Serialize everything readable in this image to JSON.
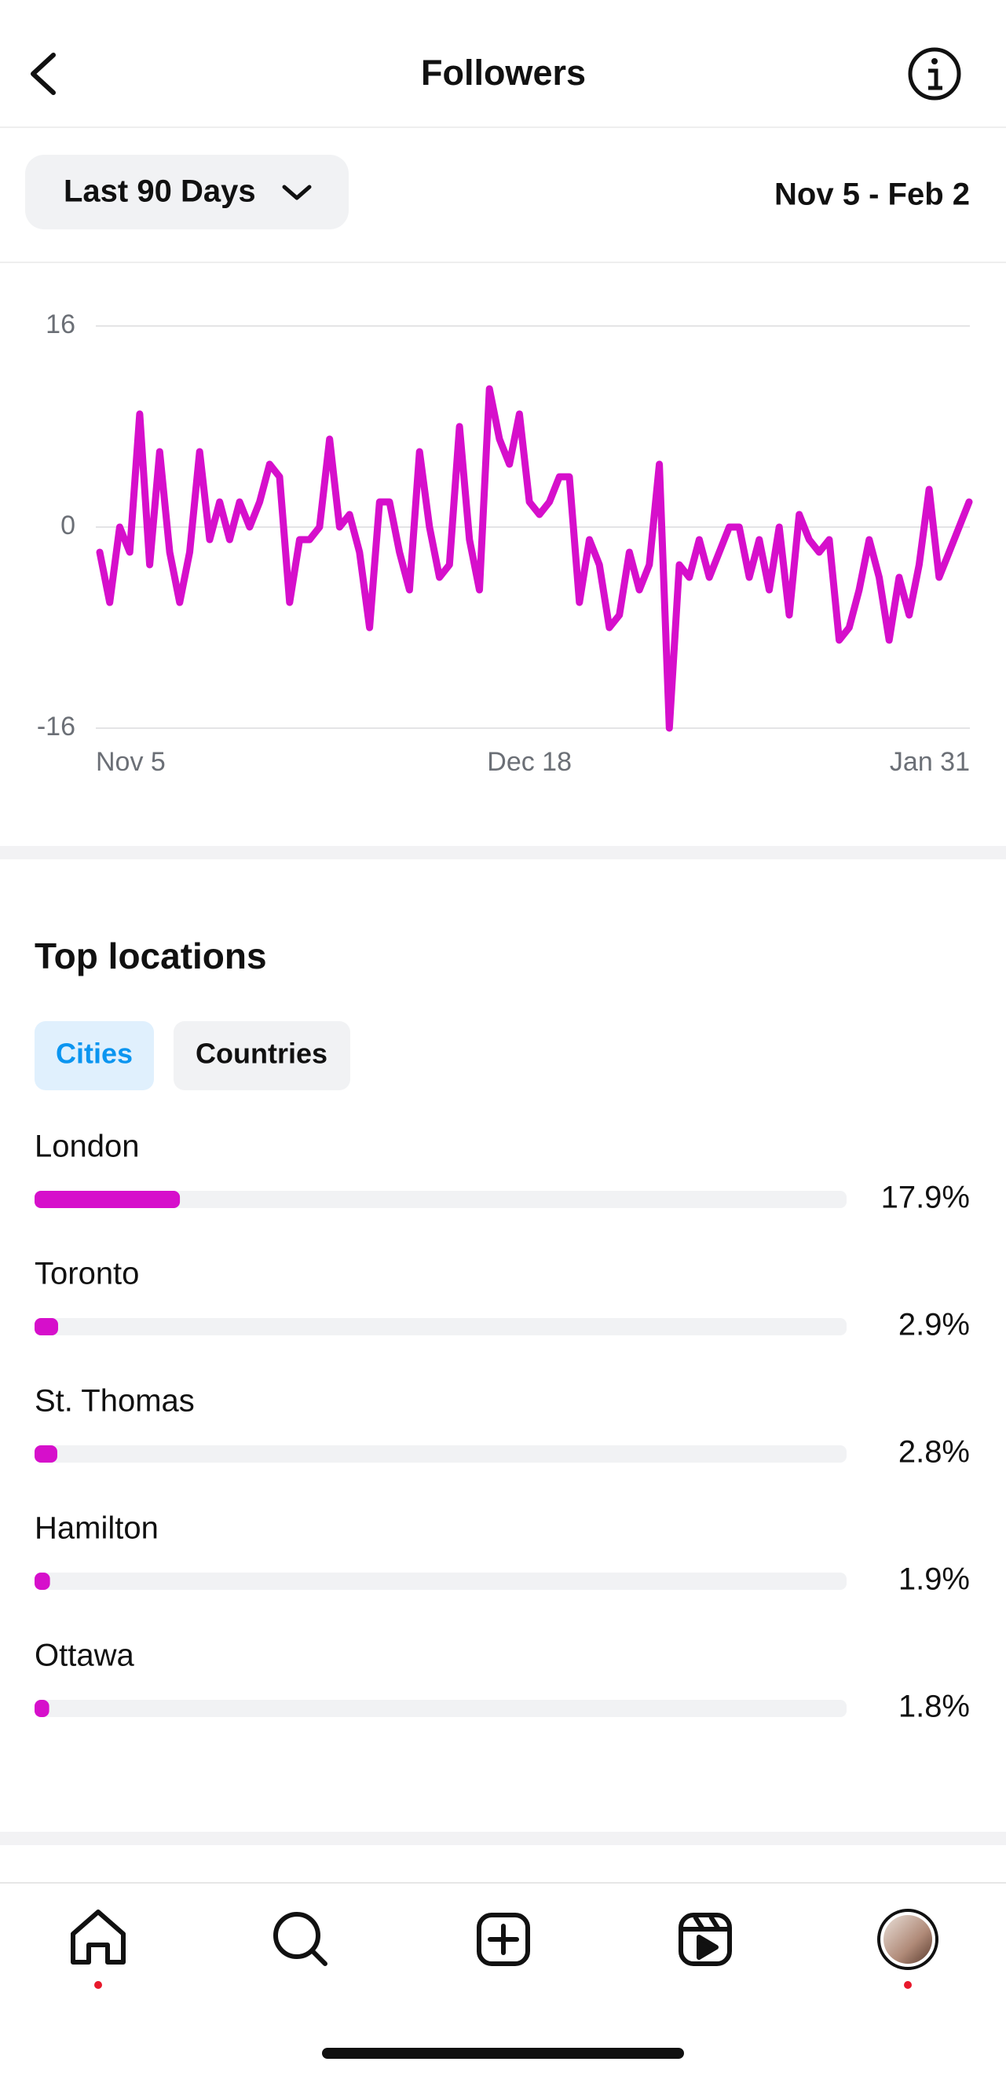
{
  "header": {
    "title": "Followers"
  },
  "controls": {
    "range": "Last 90 Days",
    "dates": "Nov 5 - Feb 2"
  },
  "location_tabs": [
    "Cities",
    "Countries"
  ],
  "chart_data": [
    {
      "type": "line",
      "categories": [
        "Nov 5",
        null,
        null,
        null,
        null,
        null,
        null,
        null,
        null,
        null,
        null,
        null,
        null,
        null,
        null,
        null,
        null,
        null,
        null,
        null,
        null,
        null,
        null,
        null,
        null,
        null,
        null,
        null,
        null,
        null,
        null,
        null,
        null,
        null,
        null,
        null,
        null,
        null,
        null,
        null,
        null,
        null,
        null,
        "Dec 18",
        null,
        null,
        null,
        null,
        null,
        null,
        null,
        null,
        null,
        null,
        null,
        null,
        null,
        null,
        null,
        null,
        null,
        null,
        null,
        null,
        null,
        null,
        null,
        null,
        null,
        null,
        null,
        null,
        null,
        null,
        null,
        null,
        null,
        null,
        null,
        null,
        null,
        null,
        null,
        null,
        null,
        null,
        null,
        "Jan 31"
      ],
      "values": [
        -2,
        -6,
        0,
        -2,
        9,
        -3,
        6,
        -2,
        -6,
        -2,
        6,
        -1,
        2,
        -1,
        2,
        0,
        2,
        5,
        4,
        -6,
        -1,
        -1,
        0,
        7,
        0,
        1,
        -2,
        -8,
        2,
        2,
        -2,
        -5,
        6,
        0,
        -4,
        -3,
        8,
        -1,
        -5,
        11,
        7,
        5,
        9,
        2,
        1,
        2,
        4,
        4,
        -6,
        -1,
        -3,
        -8,
        -7,
        -2,
        -5,
        -3,
        5,
        -16,
        -3,
        -4,
        -1,
        -4,
        -2,
        0,
        0,
        -4,
        -1,
        -5,
        0,
        -7,
        1,
        -1,
        -2,
        -1,
        -9,
        -8,
        -5,
        -1,
        -4,
        -9,
        -4,
        -7,
        -3,
        3,
        -4,
        -2,
        0,
        2
      ],
      "color": "#d60fcb",
      "ylim": [
        -16,
        16
      ],
      "yticks": [
        -16,
        0,
        16
      ],
      "grid": true
    },
    {
      "type": "hbar",
      "title": "Top locations",
      "categories": [
        "London",
        "Toronto",
        "St. Thomas",
        "Hamilton",
        "Ottawa"
      ],
      "values": [
        17.9,
        2.9,
        2.8,
        1.9,
        1.8
      ],
      "value_labels": [
        "17.9%",
        "2.9%",
        "2.8%",
        "1.9%",
        "1.8%"
      ],
      "color": "#d60fcb",
      "xlim": [
        0,
        100
      ]
    }
  ]
}
